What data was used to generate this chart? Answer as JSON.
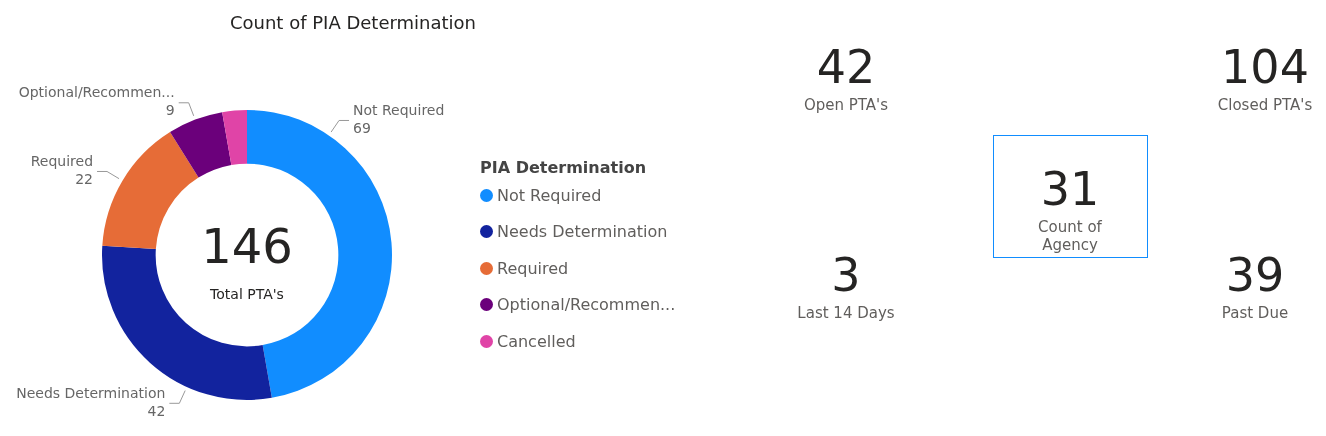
{
  "chart_data": [
    {
      "type": "donut",
      "title": "Count of PIA Determination",
      "legend_title": "PIA Determination",
      "legend": "right",
      "categories": [
        "Not Required",
        "Needs Determination",
        "Required",
        "Optional/Recommen...",
        "Cancelled"
      ],
      "values": [
        69,
        42,
        22,
        9,
        4
      ],
      "colors": [
        "#118dff",
        "#12239e",
        "#e66c37",
        "#6b007b",
        "#e044a7"
      ],
      "value_labels": [
        "69",
        "42",
        "22",
        "9",
        null
      ],
      "annotations": [
        "146",
        "Total PTA's"
      ]
    },
    {
      "type": "other",
      "annotations": [
        "42",
        "Open PTA's",
        "104",
        "Closed PTA's",
        "31",
        "Count of Agency",
        "3",
        "Last 14 Days",
        "39",
        "Past Due"
      ]
    }
  ]
}
